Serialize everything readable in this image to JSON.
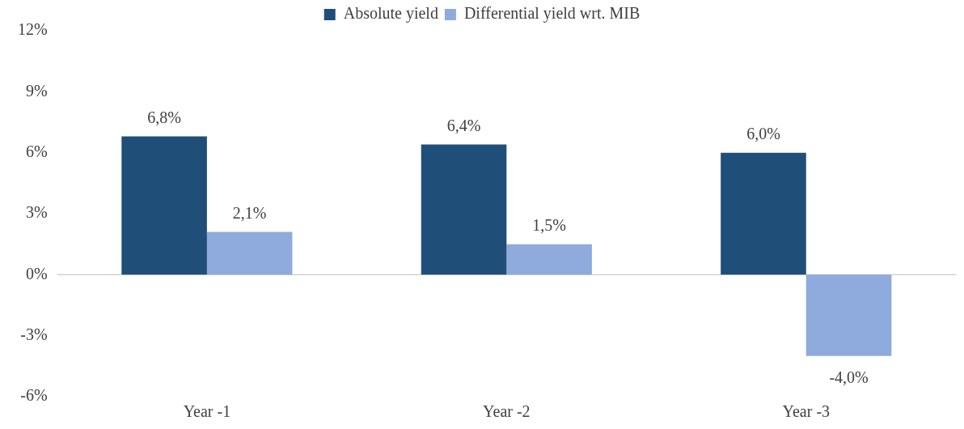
{
  "chart_data": {
    "type": "bar",
    "categories": [
      "Year -1",
      "Year -2",
      "Year -3"
    ],
    "series": [
      {
        "name": "Absolute yield",
        "color": "#1f4e79",
        "values": [
          6.8,
          6.4,
          6.0
        ],
        "value_labels": [
          "6,8%",
          "6,4%",
          "6,0%"
        ]
      },
      {
        "name": "Differential yield wrt. MIB",
        "color": "#8faadc",
        "values": [
          2.1,
          1.5,
          -4.0
        ],
        "value_labels": [
          "2,1%",
          "1,5%",
          "-4,0%"
        ]
      }
    ],
    "ylim": [
      -6,
      12
    ],
    "yticks": [
      {
        "value": -6,
        "label": "-6%"
      },
      {
        "value": -3,
        "label": "-3%"
      },
      {
        "value": 0,
        "label": "0%"
      },
      {
        "value": 3,
        "label": "3%"
      },
      {
        "value": 6,
        "label": "6%"
      },
      {
        "value": 9,
        "label": "9%"
      },
      {
        "value": 12,
        "label": "12%"
      }
    ],
    "ref_lines": [
      {
        "axis": "y",
        "value": 0,
        "color": "#bfbfbf"
      }
    ],
    "legend": "top"
  }
}
